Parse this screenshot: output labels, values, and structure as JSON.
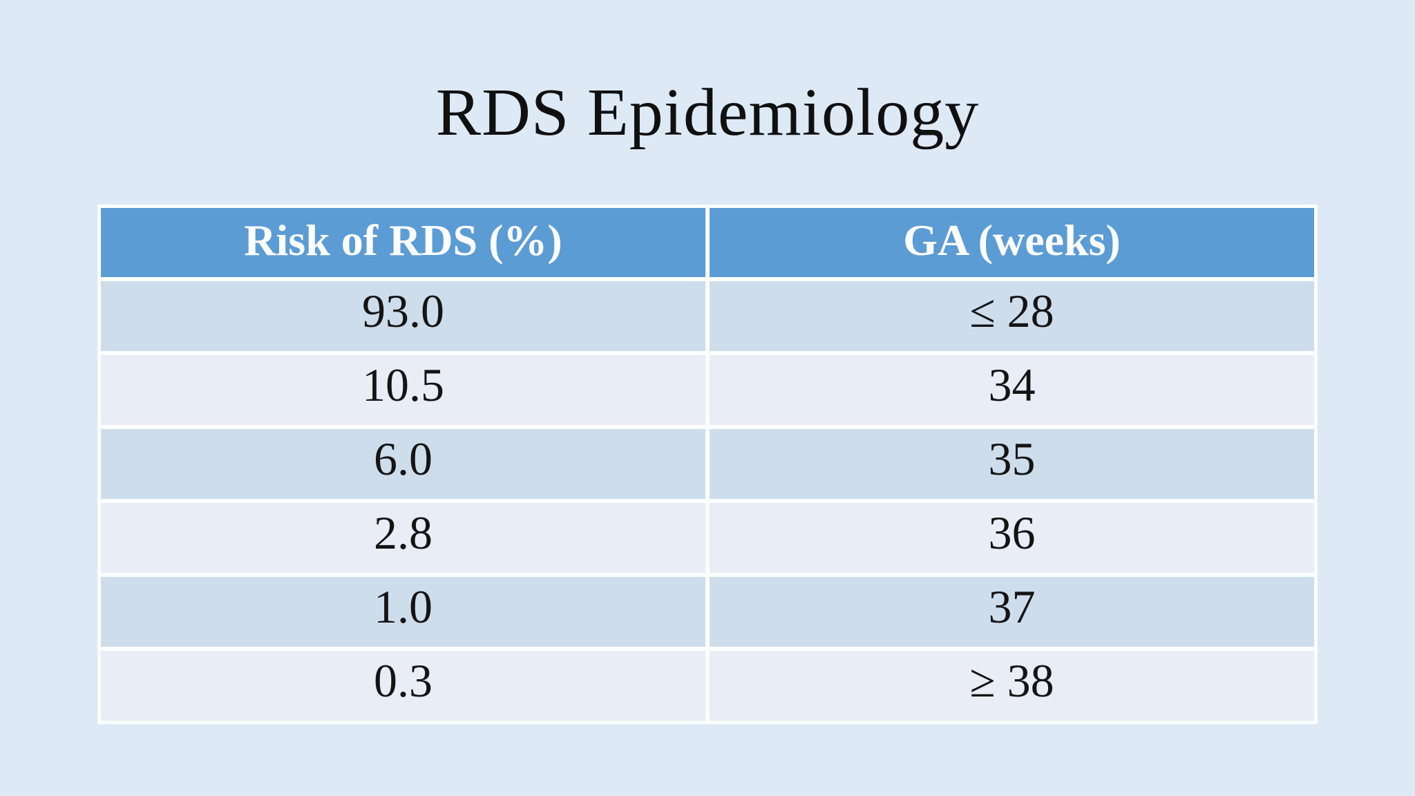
{
  "slide": {
    "title": "RDS Epidemiology"
  },
  "table": {
    "headers": [
      {
        "label": "Risk of RDS (%)"
      },
      {
        "label": "GA (weeks)"
      }
    ],
    "rows": [
      {
        "risk": "93.0",
        "ga": "≤ 28"
      },
      {
        "risk": "10.5",
        "ga": "34"
      },
      {
        "risk": "6.0",
        "ga": "35"
      },
      {
        "risk": "2.8",
        "ga": "36"
      },
      {
        "risk": "1.0",
        "ga": "37"
      },
      {
        "risk": "0.3",
        "ga": "≥ 38"
      }
    ]
  },
  "chart_data": {
    "type": "table",
    "title": "RDS Epidemiology",
    "columns": [
      "Risk of RDS (%)",
      "GA (weeks)"
    ],
    "rows": [
      [
        "93.0",
        "≤ 28"
      ],
      [
        "10.5",
        "34"
      ],
      [
        "6.0",
        "35"
      ],
      [
        "2.8",
        "36"
      ],
      [
        "1.0",
        "37"
      ],
      [
        "0.3",
        "≥ 38"
      ]
    ]
  },
  "colors": {
    "background": "#dde9f4",
    "header_fill": "#5b9cd5",
    "band_dark": "#cdddec",
    "band_light": "#e9edf5",
    "table_border": "#fbfdff",
    "title_text": "#101010",
    "header_text": "#ffffff",
    "cell_text": "#141414"
  }
}
